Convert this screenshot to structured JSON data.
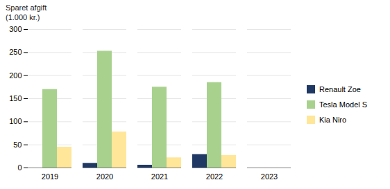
{
  "chart_data": {
    "type": "bar",
    "ylabel": [
      "Sparet afgift",
      "(1.000 kr.)"
    ],
    "categories": [
      "2019",
      "2020",
      "2021",
      "2022",
      "2023"
    ],
    "series": [
      {
        "name": "Renault Zoe",
        "color": "#1f3864",
        "values": [
          0,
          10,
          6,
          29,
          0
        ]
      },
      {
        "name": "Tesla Model S",
        "color": "#a9d18e",
        "values": [
          170,
          253,
          175,
          185,
          0
        ]
      },
      {
        "name": "Kia Niro",
        "color": "#ffe699",
        "values": [
          45,
          78,
          22,
          27,
          0
        ]
      }
    ],
    "ylim": [
      0,
      300
    ],
    "yticks": [
      0,
      50,
      100,
      150,
      200,
      250,
      300
    ],
    "grid": true,
    "legend": "right"
  }
}
